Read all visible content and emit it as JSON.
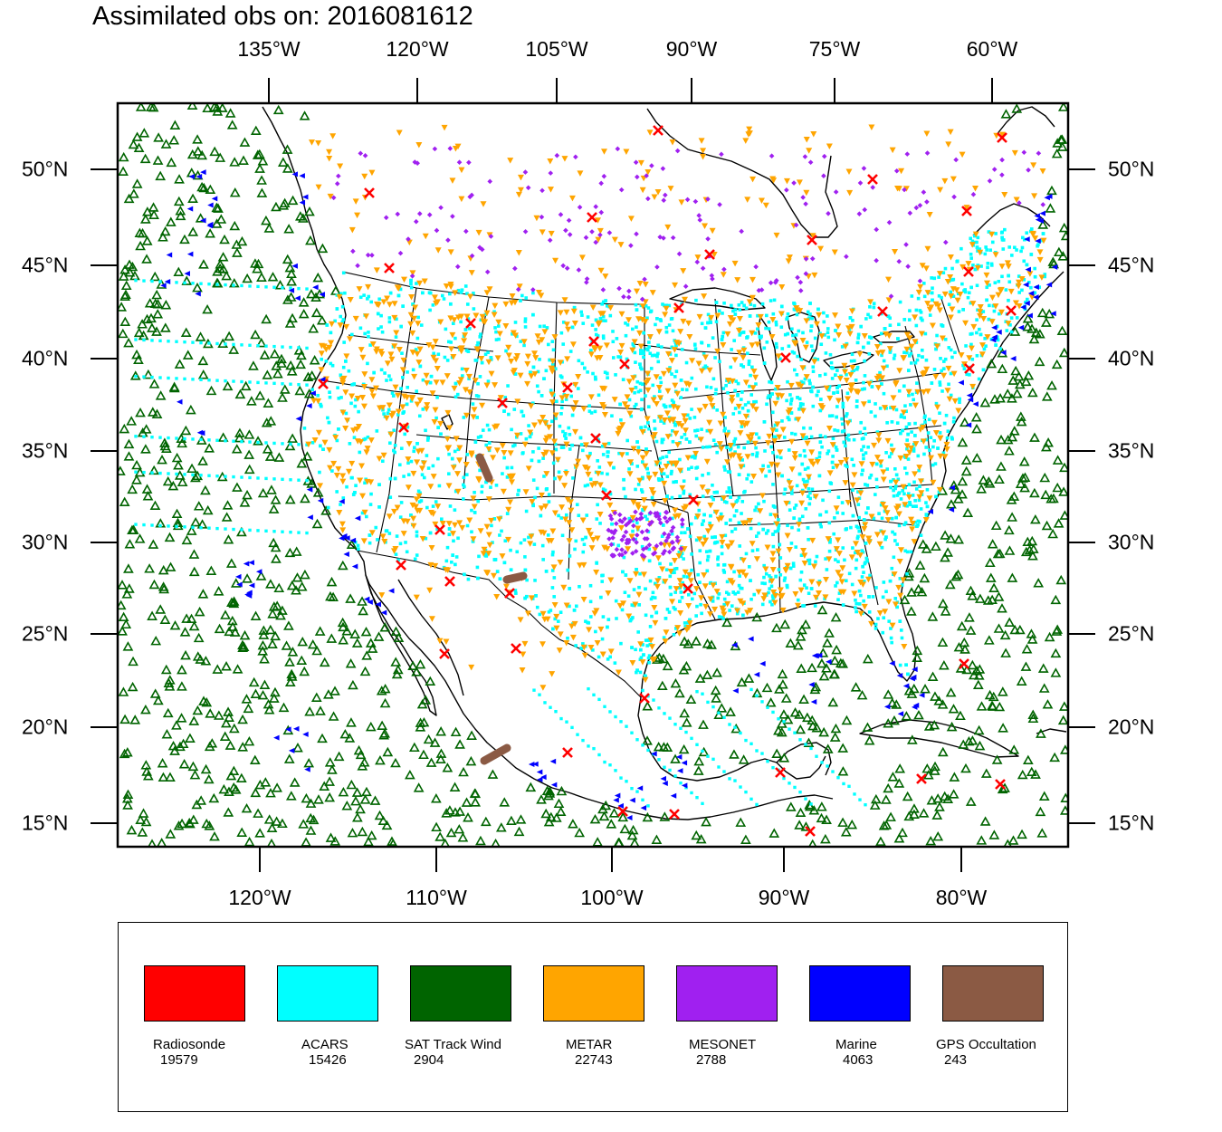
{
  "title": "Assimilated obs on: 2016081612",
  "top_lon_labels": [
    "135°W",
    "120°W",
    "105°W",
    "90°W",
    "75°W",
    "60°W"
  ],
  "bottom_lon_labels": [
    "120°W",
    "110°W",
    "100°W",
    "90°W",
    "80°W"
  ],
  "lat_labels": [
    "50°N",
    "45°N",
    "40°N",
    "35°N",
    "30°N",
    "25°N",
    "20°N",
    "15°N"
  ],
  "colors": {
    "radiosonde": "#ff0000",
    "acars": "#00ffff",
    "sat_track_wind": "#006400",
    "metar": "#ffa500",
    "mesonet": "#a020f0",
    "marine": "#0000ff",
    "gps_occultation": "#8b5a44"
  },
  "legend": [
    {
      "label": "Radiosonde",
      "count": "19579",
      "color": "#ff0000"
    },
    {
      "label": "ACARS",
      "count": "15426",
      "color": "#00ffff"
    },
    {
      "label": "SAT Track Wind",
      "count": "2904",
      "color": "#006400"
    },
    {
      "label": "METAR",
      "count": "22743",
      "color": "#ffa500"
    },
    {
      "label": "MESONET",
      "count": "2788",
      "color": "#a020f0"
    },
    {
      "label": "Marine",
      "count": "4063",
      "color": "#0000ff"
    },
    {
      "label": "GPS Occultation",
      "count": "243",
      "color": "#8b5a44"
    }
  ]
}
